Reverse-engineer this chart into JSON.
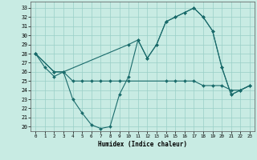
{
  "xlabel": "Humidex (Indice chaleur)",
  "background_color": "#c8ebe3",
  "line_color": "#1a6b6b",
  "grid_color": "#9acfc7",
  "xlim": [
    -0.5,
    23.5
  ],
  "ylim": [
    19.5,
    33.7
  ],
  "xticks": [
    0,
    1,
    2,
    3,
    4,
    5,
    6,
    7,
    8,
    9,
    10,
    11,
    12,
    13,
    14,
    15,
    16,
    17,
    18,
    19,
    20,
    21,
    22,
    23
  ],
  "yticks": [
    20,
    21,
    22,
    23,
    24,
    25,
    26,
    27,
    28,
    29,
    30,
    31,
    32,
    33
  ],
  "line1_x": [
    0,
    1,
    2,
    3,
    4,
    5,
    6,
    7,
    8,
    9,
    10,
    11,
    12,
    13,
    14,
    15,
    16,
    17,
    18,
    19,
    20,
    21,
    22,
    23
  ],
  "line1_y": [
    28,
    26.5,
    25.5,
    26,
    23,
    21.5,
    20.2,
    19.8,
    20,
    23.5,
    25.5,
    29.5,
    27.5,
    29,
    31.5,
    32,
    32.5,
    33,
    32,
    30.5,
    26.5,
    23.5,
    24,
    24.5
  ],
  "line2_x": [
    0,
    2,
    3,
    4,
    5,
    6,
    7,
    8,
    9,
    10,
    14,
    15,
    16,
    17,
    18,
    19,
    20,
    21,
    22,
    23
  ],
  "line2_y": [
    28,
    26,
    26,
    25,
    25,
    25,
    25,
    25,
    25,
    25,
    25,
    25,
    25,
    25,
    24.5,
    24.5,
    24.5,
    24,
    24,
    24.5
  ],
  "line3_x": [
    0,
    2,
    3,
    10,
    11,
    12,
    13,
    14,
    15,
    16,
    17,
    18,
    19,
    20,
    21,
    22,
    23
  ],
  "line3_y": [
    28,
    26,
    26,
    29,
    29.5,
    27.5,
    29,
    31.5,
    32,
    32.5,
    33,
    32,
    30.5,
    26.5,
    23.5,
    24,
    24.5
  ]
}
